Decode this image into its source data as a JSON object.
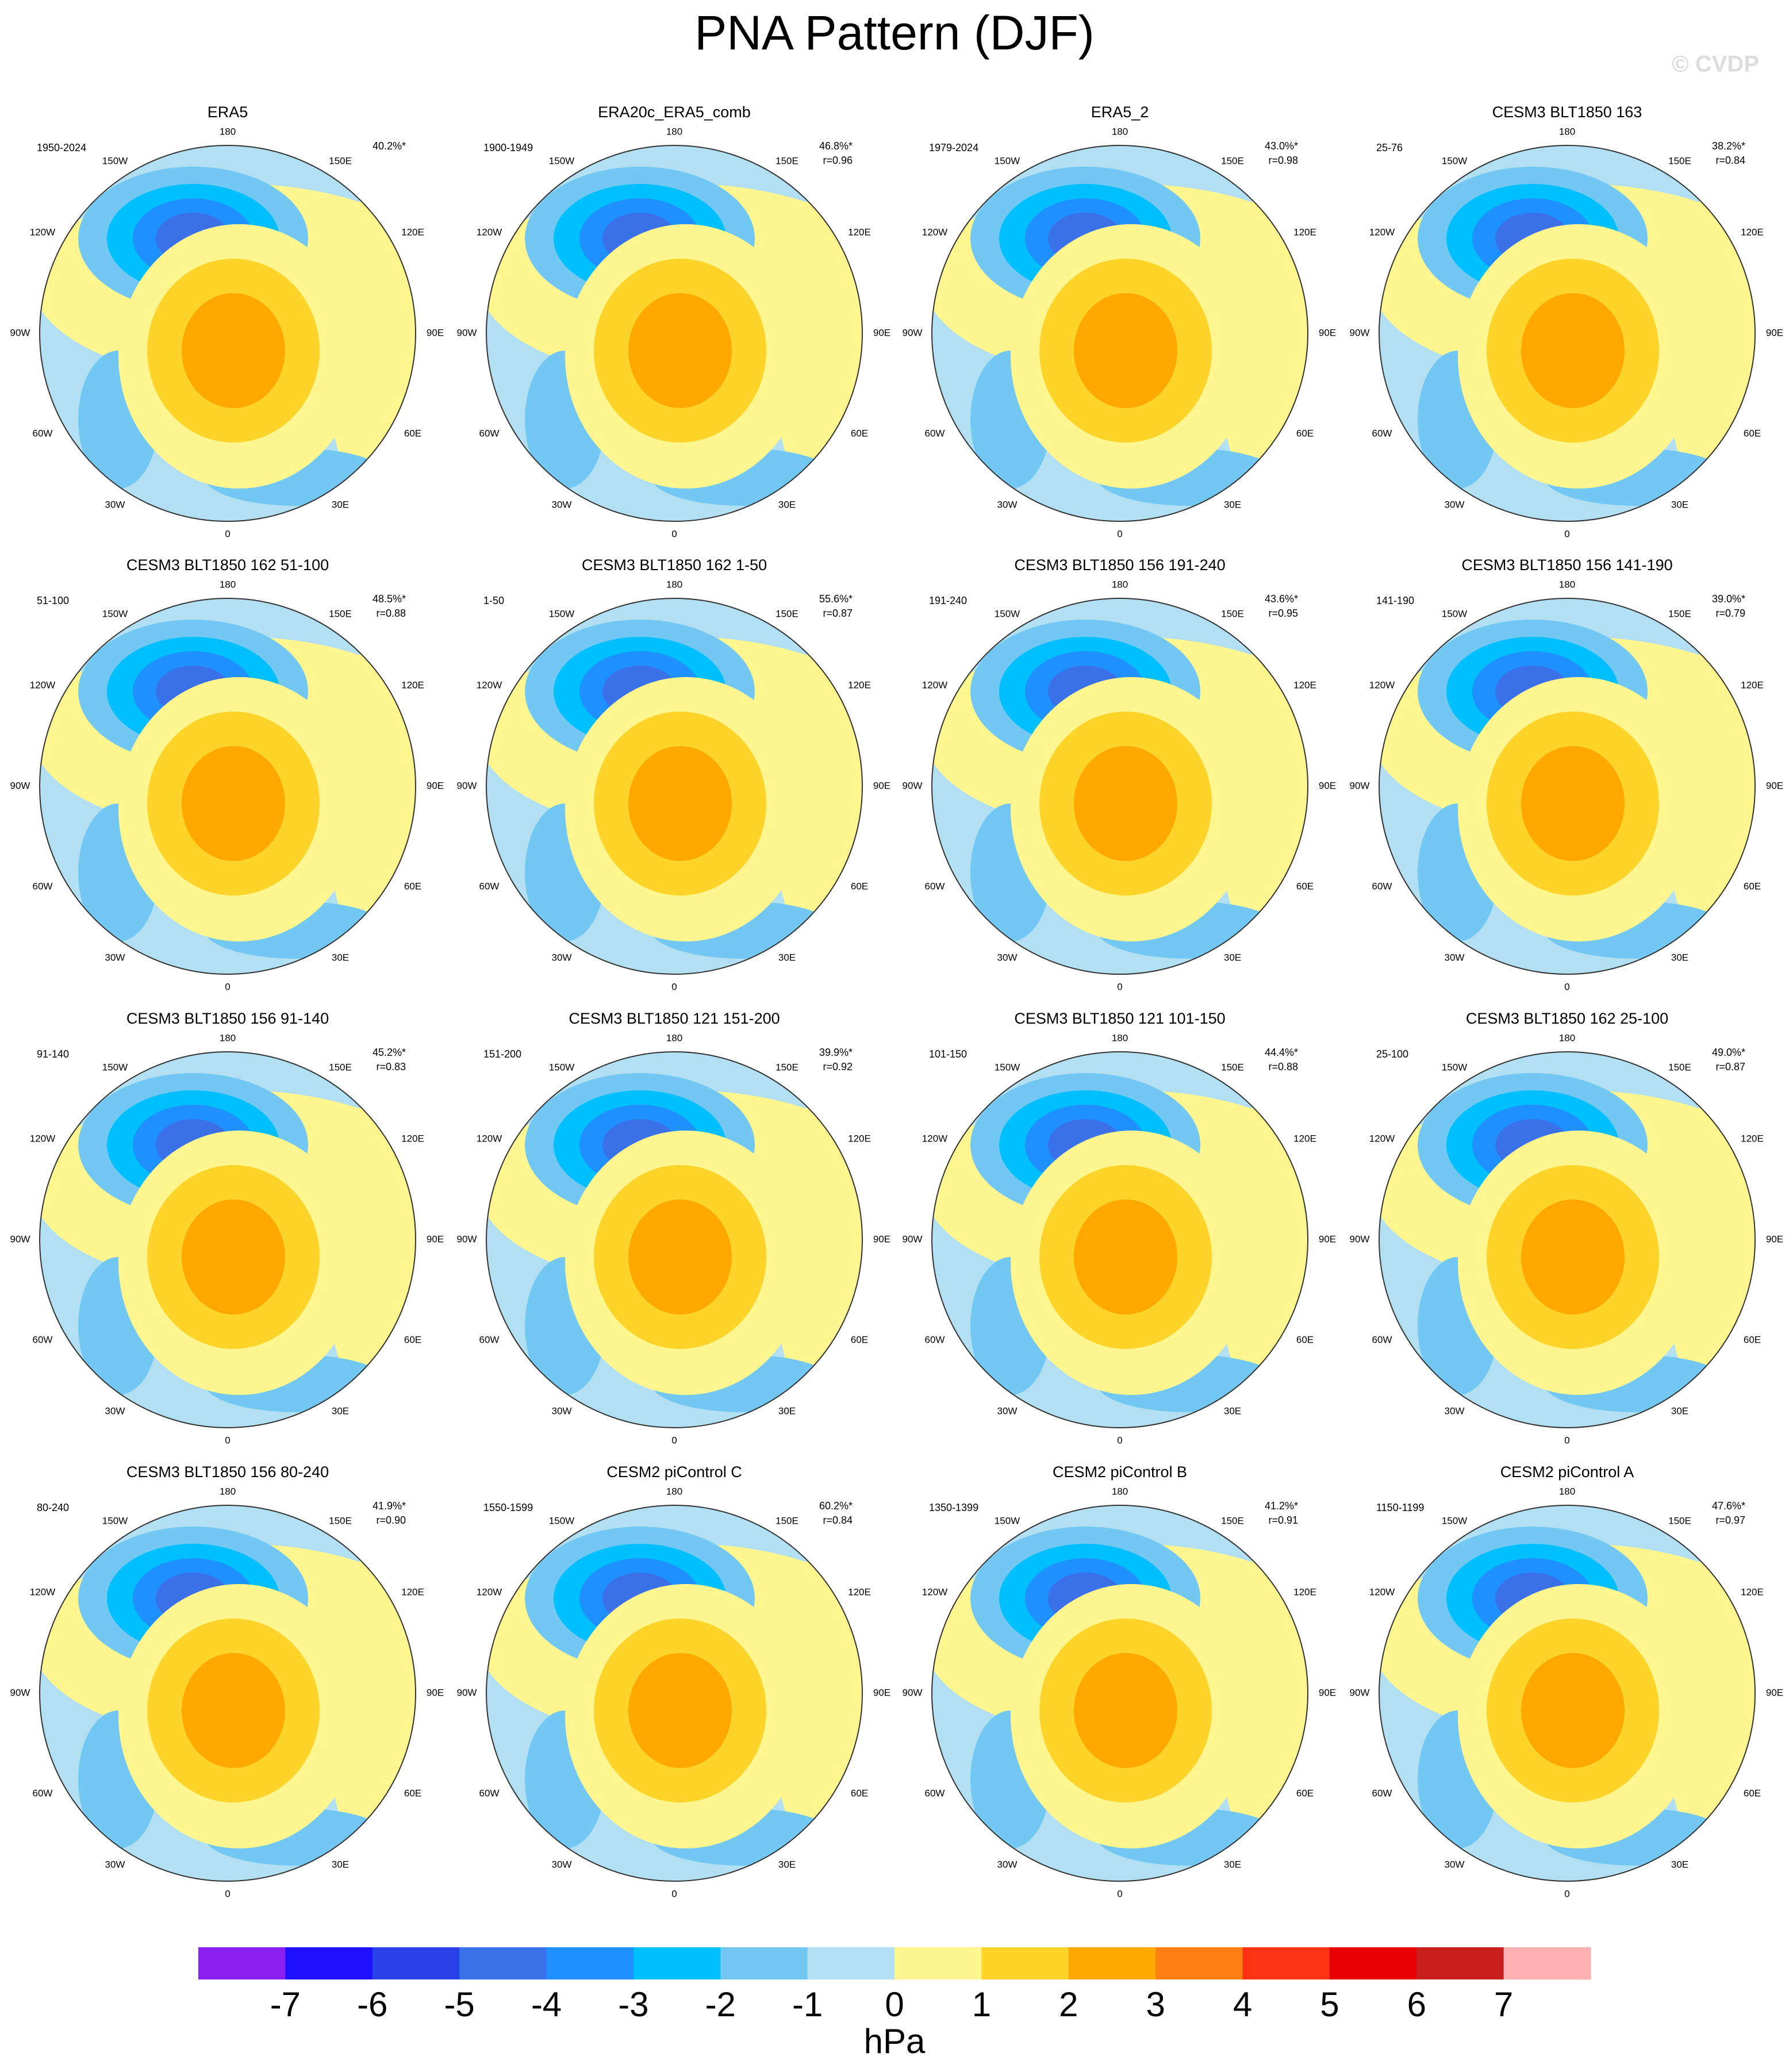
{
  "title": "PNA Pattern (DJF)",
  "watermark": "© CVDP",
  "lon_labels": [
    "180",
    "150W",
    "150E",
    "120W",
    "120E",
    "90W",
    "90E",
    "60W",
    "60E",
    "30W",
    "30E",
    "0"
  ],
  "panels": [
    {
      "title": "ERA5",
      "period": "1950-2024",
      "pct": "40.2%*"
    },
    {
      "title": "ERA20c_ERA5_comb",
      "period": "1900-1949",
      "pct": "46.8%*",
      "r": "r=0.96"
    },
    {
      "title": "ERA5_2",
      "period": "1979-2024",
      "pct": "43.0%*",
      "r": "r=0.98"
    },
    {
      "title": "CESM3 BLT1850 163",
      "period": "25-76",
      "pct": "38.2%*",
      "r": "r=0.84"
    },
    {
      "title": "CESM3 BLT1850 162 51-100",
      "period": "51-100",
      "pct": "48.5%*",
      "r": "r=0.88"
    },
    {
      "title": "CESM3 BLT1850 162 1-50",
      "period": "1-50",
      "pct": "55.6%*",
      "r": "r=0.87"
    },
    {
      "title": "CESM3 BLT1850 156 191-240",
      "period": "191-240",
      "pct": "43.6%*",
      "r": "r=0.95"
    },
    {
      "title": "CESM3 BLT1850 156 141-190",
      "period": "141-190",
      "pct": "39.0%*",
      "r": "r=0.79"
    },
    {
      "title": "CESM3 BLT1850 156 91-140",
      "period": "91-140",
      "pct": "45.2%*",
      "r": "r=0.83"
    },
    {
      "title": "CESM3 BLT1850 121 151-200",
      "period": "151-200",
      "pct": "39.9%*",
      "r": "r=0.92"
    },
    {
      "title": "CESM3 BLT1850 121 101-150",
      "period": "101-150",
      "pct": "44.4%*",
      "r": "r=0.88"
    },
    {
      "title": "CESM3 BLT1850 162 25-100",
      "period": "25-100",
      "pct": "49.0%*",
      "r": "r=0.87"
    },
    {
      "title": "CESM3 BLT1850 156 80-240",
      "period": "80-240",
      "pct": "41.9%*",
      "r": "r=0.90"
    },
    {
      "title": "CESM2 piControl C",
      "period": "1550-1599",
      "pct": "60.2%*",
      "r": "r=0.84"
    },
    {
      "title": "CESM2 piControl B",
      "period": "1350-1399",
      "pct": "41.2%*",
      "r": "r=0.91"
    },
    {
      "title": "CESM2 piControl A",
      "period": "1150-1199",
      "pct": "47.6%*",
      "r": "r=0.97"
    }
  ],
  "colorbar": {
    "colors": [
      "#8a1ff0",
      "#1e10ff",
      "#2a40e8",
      "#3a70e8",
      "#1e90ff",
      "#00bfff",
      "#72c8f2",
      "#b2e0f2",
      "#fff68f",
      "#ffd42a",
      "#ffa800",
      "#ff7f10",
      "#ff3214",
      "#e60000",
      "#c81e1e",
      "#ffb0b0"
    ],
    "ticks": [
      -7,
      -6,
      -5,
      -4,
      -3,
      -2,
      -1,
      0,
      1,
      2,
      3,
      4,
      5,
      6,
      7
    ],
    "unit": "hPa"
  }
}
